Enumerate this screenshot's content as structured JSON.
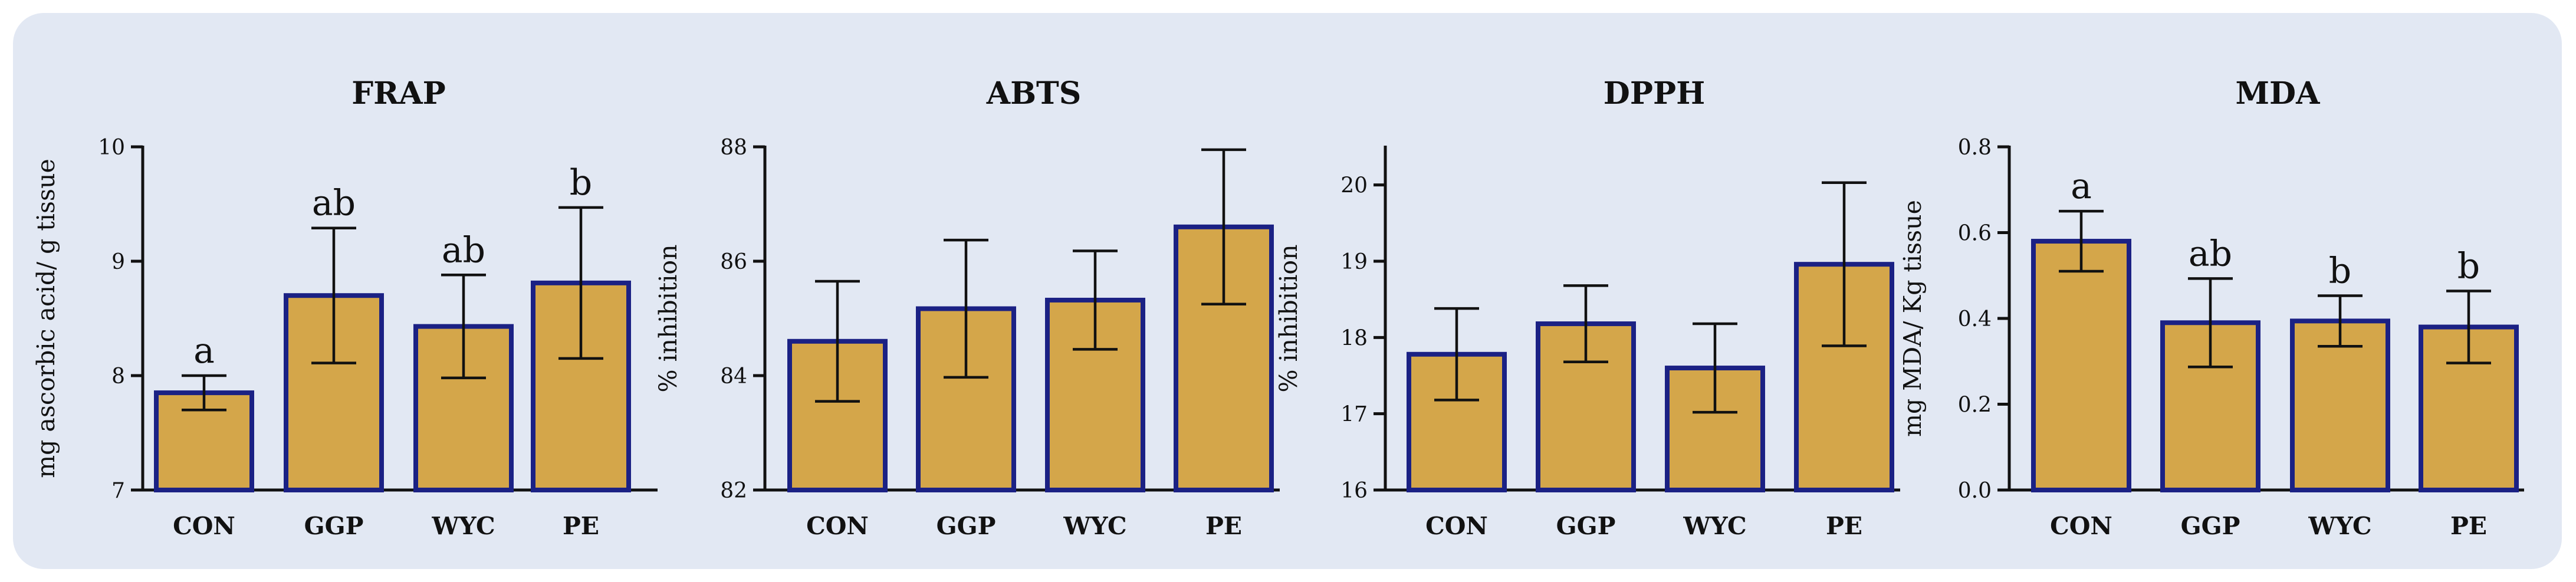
{
  "colors": {
    "bar_fill": "#d4a64a",
    "bar_stroke": "#1b2184",
    "panel_bg": "#e2e8f3"
  },
  "chart_data": [
    {
      "type": "bar",
      "title": "FRAP",
      "ylabel": "mg ascorbic acid/ g tissue",
      "xlabel": "",
      "ylim": [
        7,
        10
      ],
      "yticks": [
        7,
        8,
        9,
        10
      ],
      "ytick_labels": [
        "7",
        "8",
        "9",
        "10"
      ],
      "categories": [
        "CON",
        "GGP",
        "WYC",
        "PE"
      ],
      "values": [
        7.85,
        8.7,
        8.43,
        8.81
      ],
      "errors": [
        0.15,
        0.59,
        0.45,
        0.66
      ],
      "significance": [
        "a",
        "ab",
        "ab",
        "b"
      ]
    },
    {
      "type": "bar",
      "title": "ABTS",
      "ylabel": "% inhibition",
      "xlabel": "",
      "ylim": [
        82,
        88
      ],
      "yticks": [
        82,
        84,
        86,
        88
      ],
      "ytick_labels": [
        "82",
        "84",
        "86",
        "88"
      ],
      "categories": [
        "CON",
        "GGP",
        "WYC",
        "PE"
      ],
      "values": [
        84.6,
        85.17,
        85.32,
        86.6
      ],
      "errors": [
        1.05,
        1.2,
        0.86,
        1.35
      ],
      "significance": [
        "",
        "",
        "",
        ""
      ]
    },
    {
      "type": "bar",
      "title": "DPPH",
      "ylabel": "% inhibition",
      "xlabel": "",
      "ylim": [
        16,
        20.5
      ],
      "yticks": [
        16,
        17,
        18,
        19,
        20
      ],
      "ytick_labels": [
        "16",
        "17",
        "18",
        "19",
        "20"
      ],
      "categories": [
        "CON",
        "GGP",
        "WYC",
        "PE"
      ],
      "values": [
        17.78,
        18.18,
        17.6,
        18.96
      ],
      "errors": [
        0.6,
        0.5,
        0.58,
        1.07
      ],
      "significance": [
        "",
        "",
        "",
        ""
      ]
    },
    {
      "type": "bar",
      "title": "MDA",
      "ylabel": "mg MDA/ Kg tissue",
      "xlabel": "",
      "ylim": [
        0,
        0.8
      ],
      "yticks": [
        0,
        0.2,
        0.4,
        0.6,
        0.8
      ],
      "ytick_labels": [
        "0.0",
        "0.2",
        "0.4",
        "0.6",
        "0.8"
      ],
      "categories": [
        "CON",
        "GGP",
        "WYC",
        "PE"
      ],
      "values": [
        0.58,
        0.39,
        0.394,
        0.38
      ],
      "errors": [
        0.07,
        0.103,
        0.059,
        0.084
      ],
      "significance": [
        "a",
        "ab",
        "b",
        "b"
      ]
    }
  ]
}
